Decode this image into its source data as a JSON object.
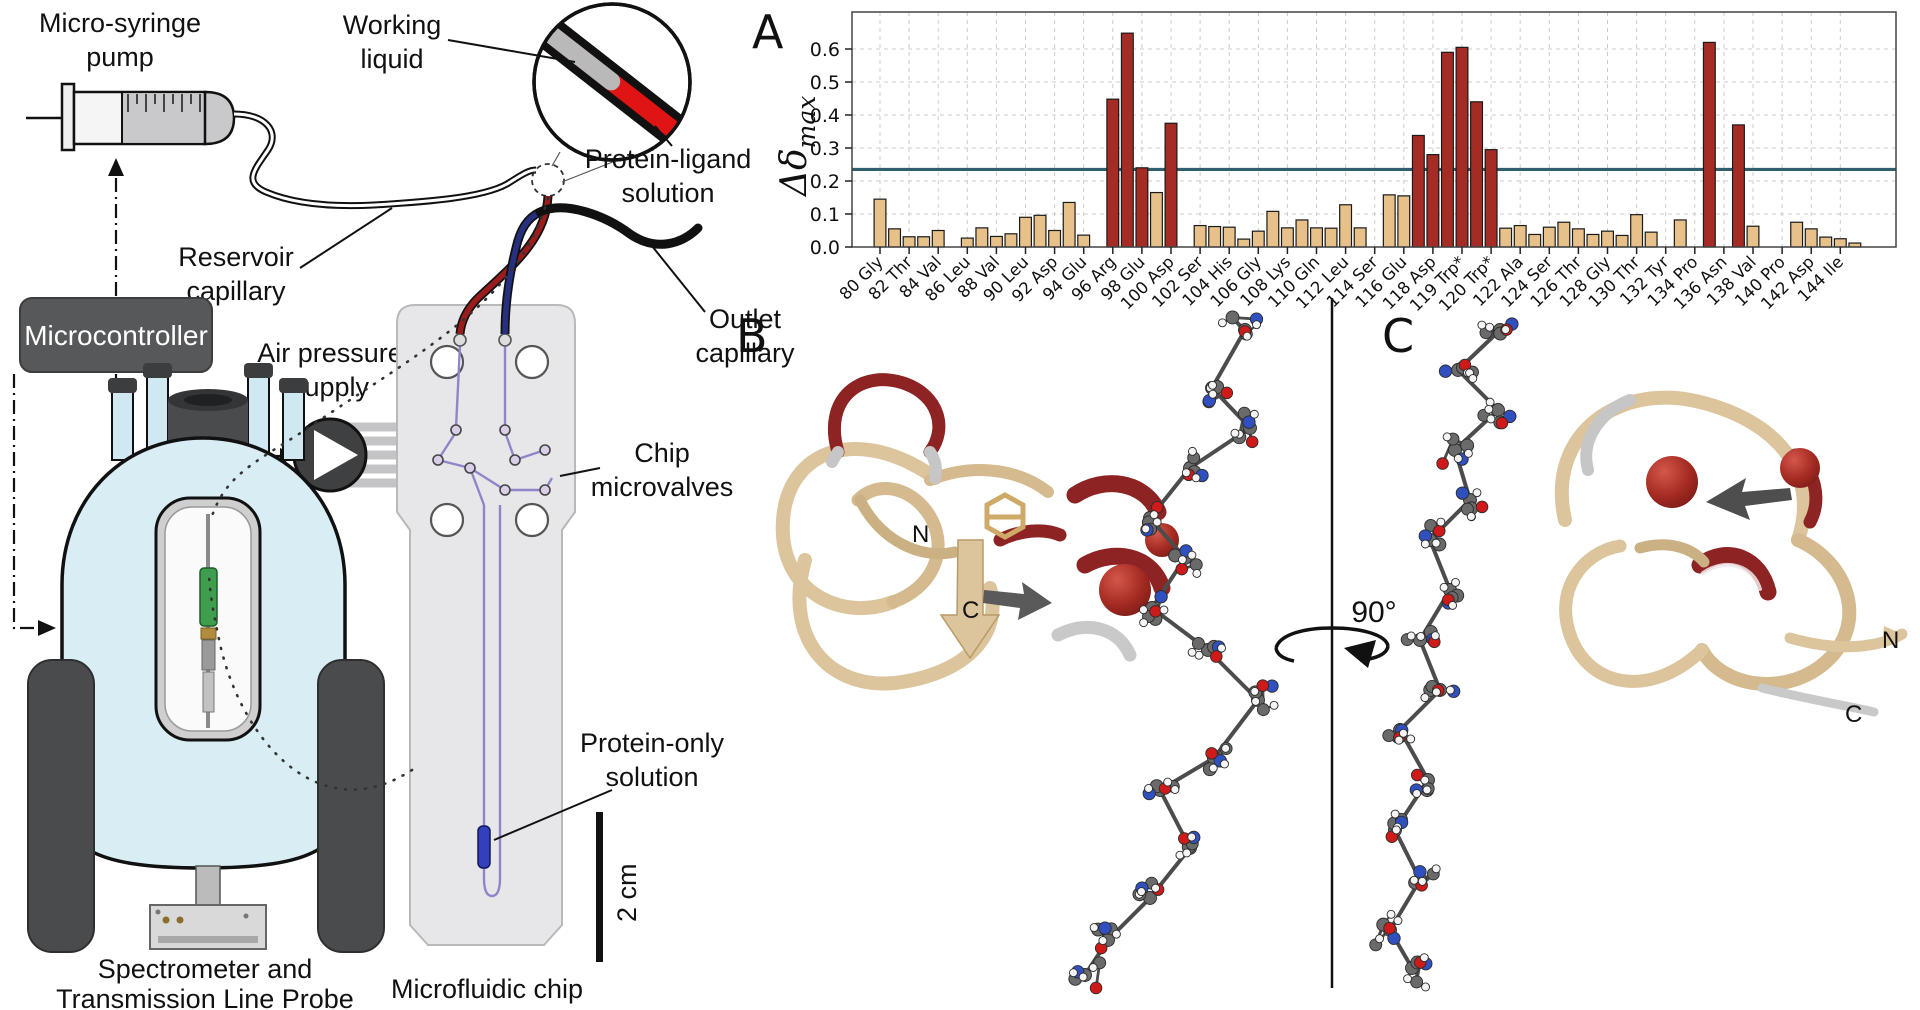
{
  "figure": {
    "panel_a": "A",
    "panel_b": "B",
    "panel_c": "C",
    "rotation_label": "90°"
  },
  "diagram": {
    "microsyringe_pump": [
      "Micro-syringe",
      "pump"
    ],
    "working_liquid": [
      "Working",
      "liquid"
    ],
    "reservoir_capillary": [
      "Reservoir",
      "capillary"
    ],
    "protein_ligand_solution": [
      "Protein-ligand",
      "solution"
    ],
    "microcontroller": "Microcontroller",
    "air_pressure_supply": [
      "Air pressure",
      "supply"
    ],
    "outlet_capillary": [
      "Outlet",
      "capillary"
    ],
    "chip_microvalves": [
      "Chip",
      "microvalves"
    ],
    "protein_only_solution": [
      "Protein-only",
      "solution"
    ],
    "scale_bar": "2 cm",
    "microfluidic_chip": "Microfluidic chip",
    "spectrometer": [
      "Spectrometer and",
      "Transmission Line Probe"
    ]
  },
  "structures": {
    "b_n_terminus": "N",
    "b_c_terminus": "C",
    "c_n_terminus": "N",
    "c_c_terminus": "C"
  },
  "chart_data": {
    "type": "bar",
    "title": "",
    "xlabel": "",
    "ylabel_main": "Δδ",
    "ylabel_sub": "max",
    "ylim": [
      0,
      0.71
    ],
    "yticks": [
      0.0,
      0.1,
      0.2,
      0.3,
      0.4,
      0.5,
      0.6
    ],
    "grid": true,
    "legend": "none",
    "threshold": 0.235,
    "colors": {
      "bar": "#e7c189",
      "bar_highlight": "#a52c25",
      "bar_border": "#1a1a1a",
      "threshold_line": "#2f5f6d",
      "grid_line": "#cccccc"
    },
    "slots": [
      {
        "tick": "80 Gly",
        "value": 0.145
      },
      {
        "tick": "",
        "value": 0.055
      },
      {
        "tick": "82 Thr",
        "value": 0.031
      },
      {
        "tick": "",
        "value": 0.031
      },
      {
        "tick": "84 Val",
        "value": 0.05
      },
      {
        "tick": "",
        "value": null
      },
      {
        "tick": "86 Leu",
        "value": 0.027
      },
      {
        "tick": "",
        "value": 0.058
      },
      {
        "tick": "88 Val",
        "value": 0.032
      },
      {
        "tick": "",
        "value": 0.04
      },
      {
        "tick": "90 Leu",
        "value": 0.09
      },
      {
        "tick": "",
        "value": 0.096
      },
      {
        "tick": "92 Asp",
        "value": 0.05
      },
      {
        "tick": "",
        "value": 0.135
      },
      {
        "tick": "94 Glu",
        "value": 0.036
      },
      {
        "tick": "",
        "value": null
      },
      {
        "tick": "96 Arg",
        "value": 0.448
      },
      {
        "tick": "",
        "value": 0.648
      },
      {
        "tick": "98 Glu",
        "value": 0.24
      },
      {
        "tick": "",
        "value": 0.165
      },
      {
        "tick": "100 Asp",
        "value": 0.375
      },
      {
        "tick": "",
        "value": null
      },
      {
        "tick": "102 Ser",
        "value": 0.065
      },
      {
        "tick": "",
        "value": 0.062
      },
      {
        "tick": "104 His",
        "value": 0.06
      },
      {
        "tick": "",
        "value": 0.024
      },
      {
        "tick": "106 Gly",
        "value": 0.048
      },
      {
        "tick": "",
        "value": 0.108
      },
      {
        "tick": "108 Lys",
        "value": 0.058
      },
      {
        "tick": "",
        "value": 0.082
      },
      {
        "tick": "110 Gln",
        "value": 0.058
      },
      {
        "tick": "",
        "value": 0.057
      },
      {
        "tick": "112 Leu",
        "value": 0.128
      },
      {
        "tick": "",
        "value": 0.058
      },
      {
        "tick": "114 Ser",
        "value": null
      },
      {
        "tick": "",
        "value": 0.158
      },
      {
        "tick": "116 Glu",
        "value": 0.155
      },
      {
        "tick": "",
        "value": 0.338
      },
      {
        "tick": "118 Asp",
        "value": 0.28
      },
      {
        "tick": "",
        "value": 0.59
      },
      {
        "tick": "119 Trp*",
        "value": 0.605
      },
      {
        "tick": "",
        "value": 0.44
      },
      {
        "tick": "120 Trp*",
        "value": 0.295
      },
      {
        "tick": "",
        "value": 0.057
      },
      {
        "tick": "122 Ala",
        "value": 0.065
      },
      {
        "tick": "",
        "value": 0.038
      },
      {
        "tick": "124 Ser",
        "value": 0.06
      },
      {
        "tick": "",
        "value": 0.075
      },
      {
        "tick": "126 Thr",
        "value": 0.055
      },
      {
        "tick": "",
        "value": 0.038
      },
      {
        "tick": "128 Gly",
        "value": 0.048
      },
      {
        "tick": "",
        "value": 0.035
      },
      {
        "tick": "130 Thr",
        "value": 0.098
      },
      {
        "tick": "",
        "value": 0.045
      },
      {
        "tick": "132 Tyr",
        "value": null
      },
      {
        "tick": "",
        "value": 0.082
      },
      {
        "tick": "134 Pro",
        "value": null
      },
      {
        "tick": "",
        "value": 0.62
      },
      {
        "tick": "136 Asn",
        "value": null
      },
      {
        "tick": "",
        "value": 0.37
      },
      {
        "tick": "138 Val",
        "value": 0.063
      },
      {
        "tick": "",
        "value": null
      },
      {
        "tick": "140 Pro",
        "value": null
      },
      {
        "tick": "",
        "value": 0.075
      },
      {
        "tick": "142 Asp",
        "value": 0.055
      },
      {
        "tick": "",
        "value": 0.03
      },
      {
        "tick": "144 Ile",
        "value": 0.025
      },
      {
        "tick": "",
        "value": 0.012
      }
    ]
  }
}
